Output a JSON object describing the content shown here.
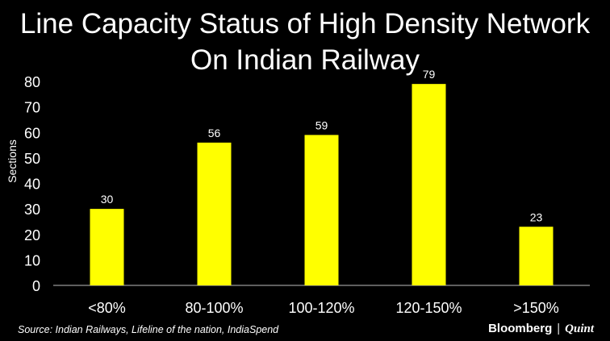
{
  "chart_data": {
    "type": "bar",
    "title": "Line Capacity Status of High Density Network On Indian Railway",
    "title_lines": [
      "Line Capacity Status of High Density Network",
      "On Indian Railway"
    ],
    "xlabel": "",
    "ylabel": "Sections",
    "categories": [
      "<80%",
      "80-100%",
      "100-120%",
      "120-150%",
      ">150%"
    ],
    "values": [
      30,
      56,
      59,
      79,
      23
    ],
    "ylim": [
      0,
      80
    ],
    "yticks": [
      0,
      10,
      20,
      30,
      40,
      50,
      60,
      70,
      80
    ],
    "grid": false,
    "bar_color": "#FFFF00"
  },
  "source": "Source: Indian Railways, Lifeline of the nation, IndiaSpend",
  "logo": {
    "left": "Bloomberg",
    "right": "Quint"
  }
}
